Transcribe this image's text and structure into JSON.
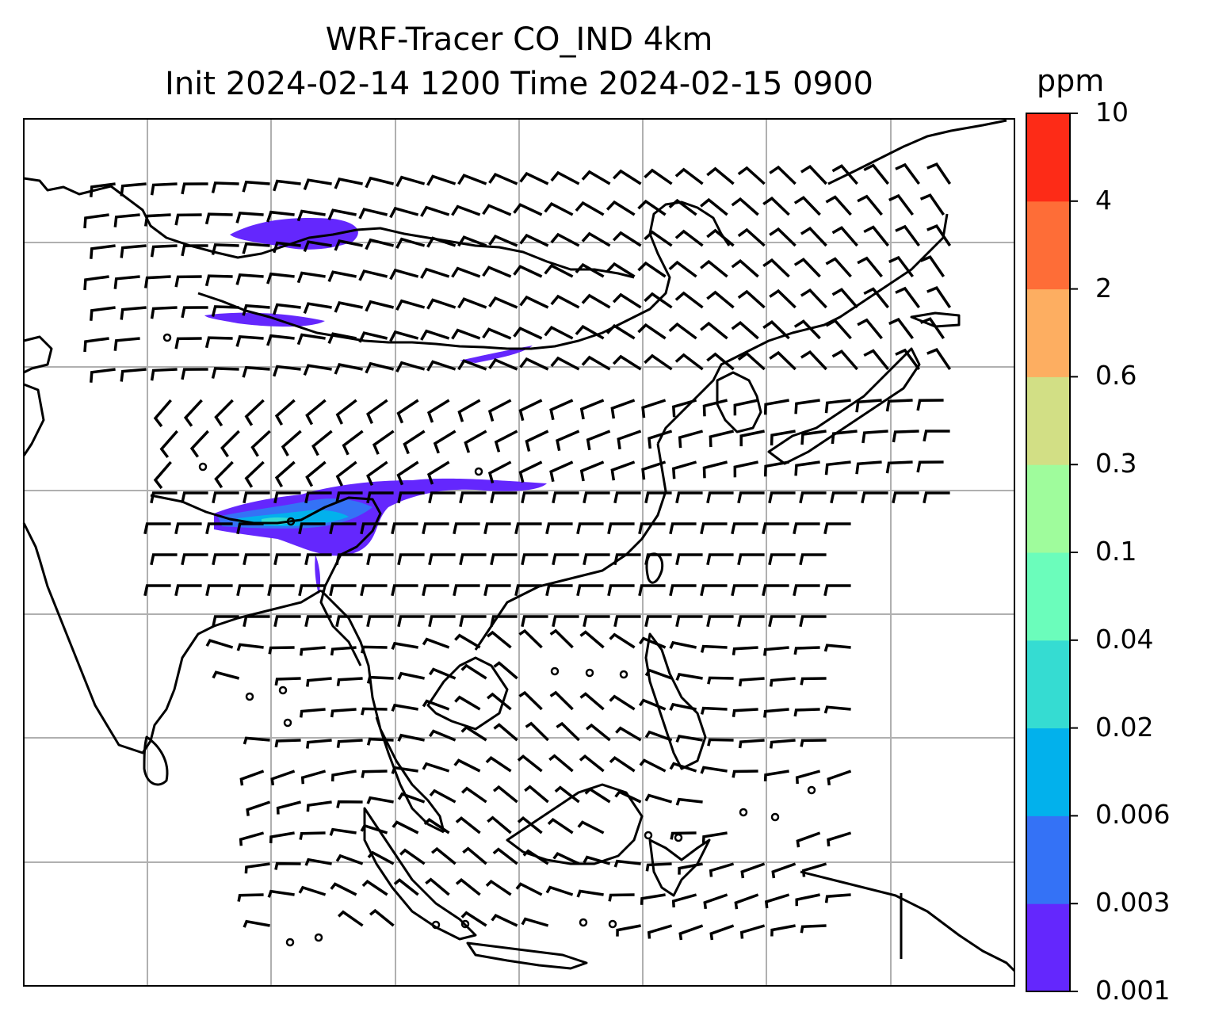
{
  "title_line1": "WRF-Tracer CO_IND 4km",
  "title_line2": "Init 2024-02-14 1200 Time 2024-02-15 0900",
  "colorbar": {
    "unit": "ppm",
    "ticks": [
      "0.001",
      "0.003",
      "0.006",
      "0.02",
      "0.04",
      "0.1",
      "0.3",
      "0.6",
      "2",
      "4",
      "10"
    ],
    "colors": [
      "#6427fd",
      "#3472f6",
      "#02b1ec",
      "#35dcd2",
      "#6bfdbb",
      "#9ffc9c",
      "#d2df85",
      "#fdae61",
      "#fe6d37",
      "#fd2b17"
    ]
  },
  "map": {
    "projection_extent": "South & East Asia",
    "gridlines": true,
    "coastline_color": "#000000",
    "plume_color": "#6427fd",
    "plume_core_colors": [
      "#3472f6",
      "#02b1ec",
      "#35dcd2"
    ]
  }
}
